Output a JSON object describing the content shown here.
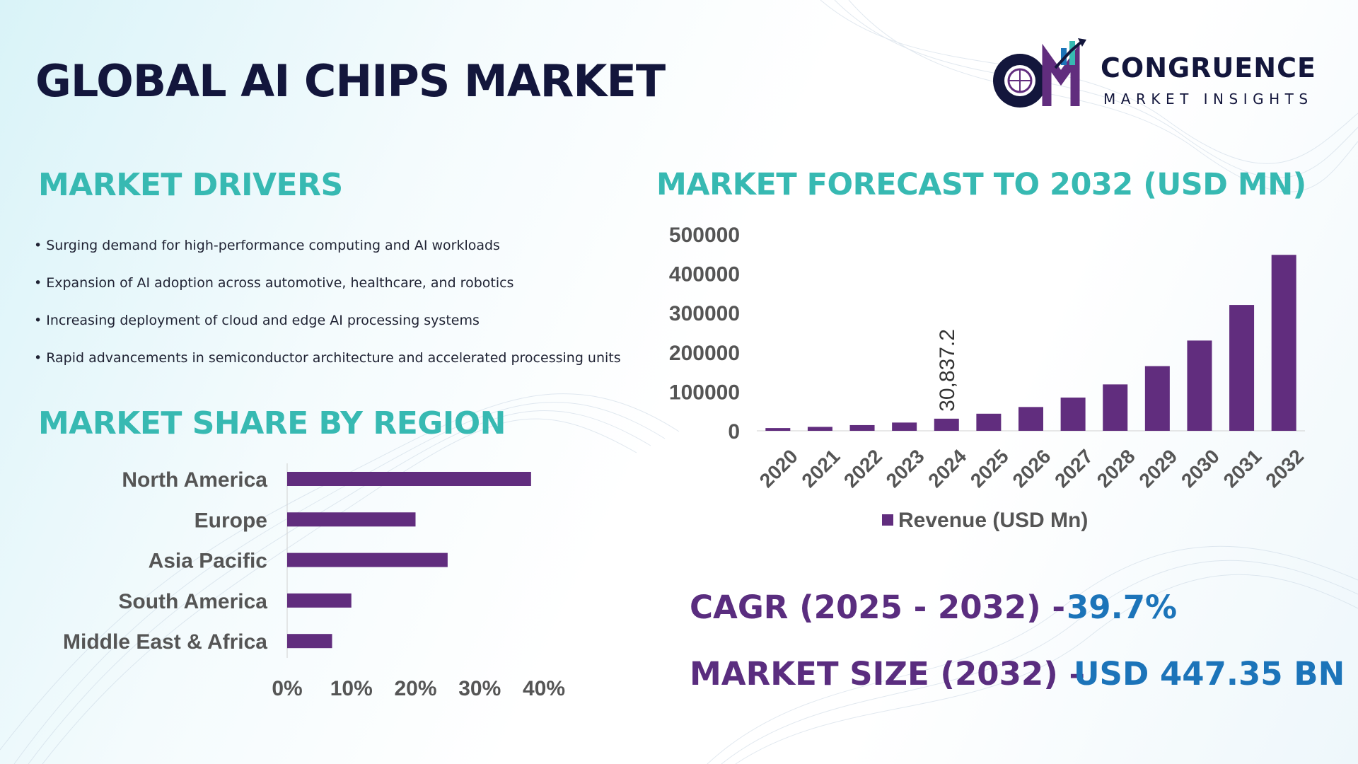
{
  "title": "GLOBAL AI CHIPS MARKET",
  "logo": {
    "name": "CONGRUENCE",
    "tagline": "MARKET INSIGHTS"
  },
  "drivers": {
    "title": "MARKET DRIVERS",
    "items": [
      "Surging demand for high-performance computing and AI workloads",
      "Expansion of AI adoption across automotive, healthcare, and robotics",
      "Increasing deployment of cloud and edge AI processing systems",
      "Rapid advancements in semiconductor architecture and accelerated processing units"
    ]
  },
  "region": {
    "title": "MARKET SHARE BY REGION"
  },
  "forecast": {
    "title": "MARKET FORECAST TO 2032 (USD MN)"
  },
  "stats": {
    "cagr_label": "CAGR (2025 - 2032) -",
    "cagr_value": "39.7%",
    "size_label": "MARKET SIZE (2032) –",
    "size_value": "USD 447.35 BN"
  },
  "colors": {
    "bar": "#612d7e",
    "teal": "#37b9b2",
    "navy": "#13163c",
    "blue": "#1c74b9"
  },
  "chart_data": [
    {
      "type": "bar",
      "orientation": "vertical",
      "categories": [
        "2020",
        "2021",
        "2022",
        "2023",
        "2024",
        "2025",
        "2026",
        "2027",
        "2028",
        "2029",
        "2030",
        "2031",
        "2032"
      ],
      "series": [
        {
          "name": "Revenue (USD Mn)",
          "values": [
            7000,
            10000,
            14500,
            21000,
            30837.2,
            43500,
            60500,
            84500,
            118000,
            164500,
            229500,
            320000,
            447350
          ]
        }
      ],
      "data_labels": [
        {
          "index": 4,
          "text": "30,837.2"
        }
      ],
      "y_ticks": [
        "0",
        "100000",
        "200000",
        "300000",
        "400000",
        "500000"
      ],
      "ylim": [
        0,
        500000
      ],
      "legend": "bottom"
    },
    {
      "type": "bar",
      "orientation": "horizontal",
      "categories": [
        "North America",
        "Europe",
        "Asia Pacific",
        "South America",
        "Middle East & Africa"
      ],
      "values": [
        38,
        20,
        25,
        10,
        7
      ],
      "x_ticks": [
        "0%",
        "10%",
        "20%",
        "30%",
        "40%"
      ],
      "xlim": [
        0,
        40
      ]
    }
  ]
}
